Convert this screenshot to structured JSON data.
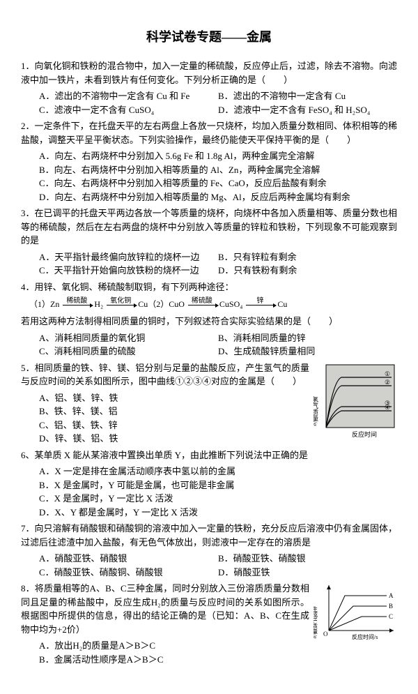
{
  "title": "科学试卷专题——金属",
  "q1": {
    "stem": "1．向氧化铜和铁粉的混合物中，加入一定量的稀硫酸，反应停止后，过滤，除去不溶物。向滤液中加一铁片，未看到铁片有任何变化。下列分析正确的是（　　）",
    "A": "A．滤出的不溶物中一定含有 Cu 和 Fe",
    "B": "B．滤出的不溶物中一定含有 Cu",
    "C": "C．滤液中一定不含有 CuSO₄",
    "D": "D．滤液中一定不含有 FeSO₄ 和 H₂SO₄"
  },
  "q2": {
    "stem": "2．一定条件下，在托盘天平的左右两盘上各放一只烧杯，均加入质量分数相同、体积相等的稀盐酸，调整天平呈平衡状态。下列实验操作，最终仍能使天平保持平衡的是（　　）",
    "A": "A．向左、右两烧杯中分别加入 5.6g Fe 和 1.8g Al，两种金属完全溶解",
    "B": "B．向左、右两烧杯中分别加入相等质量的 Al、Zn，两种金属完全溶解",
    "C": "C．向左、右两烧杯中分别加入相等质量的 Fe、CaO，反应后盐酸有剩余",
    "D": "D．向左、右两烧杯中分别加入相等质量的 Mg、Al，反应后两种金属均有剩余"
  },
  "q3": {
    "stem": "3．在已调平的托盘天平两边各放一个等质量的烧杯，向烧杯中各加入质量相等、质量分数也相等的稀硫酸，然后在左右两盘的烧杯中分别放入等质量的锌粒和铁粉，下列现象不可能观察到的是",
    "A": "A．天平指针最终偏向放锌粒的烧杯一边",
    "B": "B．只有锌粒有剩余",
    "C": "C．天平指针开始偏向放铁粉的烧杯一边",
    "D": "D．只有铁粉有剩余"
  },
  "q4": {
    "stem": "4．用锌、氧化铜、稀硫酸制取铜，有下列两种途径：",
    "flow1": {
      "sub1": "稀硫酸",
      "sub2": "氧化铜",
      "sub3": "稀硫酸",
      "sub4": "锌",
      "s1": "（1）Zn",
      "s2": "H₂",
      "s3": "Cu（2）CuO",
      "s4": "CuSO₄",
      "s5": "Cu"
    },
    "tail": "若用这两种方法制得相同质量的铜时，下列叙述符合实际实验结果的是（　　）",
    "A": "A、消耗相同质量的氧化铜",
    "B": "B、消耗相同质量的锌",
    "C": "C、消耗相同质量的硫酸",
    "D": "D、生成硫酸锌质量相同"
  },
  "q5": {
    "stem": "5．相同质量的铁、锌、镁、铝分别与足量的盐酸反应，产生氢气的质量与反应时间的关系如图所示，图中曲线①②③④对应的金属是（　　）",
    "A": "A、铝、镁、锌、铁",
    "B": "B、铁、锌、镁、铝",
    "C": "C、铝、镁、铁、锌",
    "D": "D、锌、镁、铝、铁",
    "chart": {
      "ylab": "氢气质量/g",
      "xlab": "反应时间",
      "curves": [
        {
          "label": "①",
          "y": 72,
          "color": "#000"
        },
        {
          "label": "②",
          "y": 60,
          "color": "#000"
        },
        {
          "label": "③",
          "y": 30,
          "color": "#000"
        },
        {
          "label": "④",
          "y": 24,
          "color": "#000"
        }
      ],
      "bg": "#d0d0cc"
    }
  },
  "q6": {
    "stem": "6、某单质 X 能从某溶液中置换出单质 Y，由此推断下列说法中正确的是",
    "A": "A．X 一定是排在金属活动顺序表中氢以前的金属",
    "B": "B．X 是金属时，Y 可能是金属，也可能是非金属",
    "C": "C．X 是金属时，Y 一定比 X 活泼",
    "D": "D．X、Y 都是金属时，Y 一定比 X 活泼"
  },
  "q7": {
    "stem": "7．向只溶解有硝酸银和硝酸铜的溶液中加入一定量的铁粉，充分反应后溶液中仍有金属固体，过滤后往滤渣中加入盐酸，有无色气体放出，则滤液中一定存在的溶质是",
    "A": "A．硝酸亚铁、硝酸银",
    "B": "B．硝酸亚铁、硝酸银",
    "C": "C．硝酸亚铁、硝酸铜、硝酸银",
    "D": "D．硝酸亚铁"
  },
  "q8": {
    "stem": "8．将质量相等的A、B、C三种金属，同时分别放入三份溶质质量分数相同且足量的稀盐酸中，反应生成H₂的质量与反应时间的关系如图所示。根据图中所提供的信息，得出的结论正确的是（已知：A、B、C在生成物中均为+2价）",
    "A": "A．放出H₂的质量是A＞B＞C",
    "B": "B．金属活动性顺序是A＞B＞C",
    "chart": {
      "ylab": "生成H₂质量/g",
      "xlab": "反应时间/s",
      "lines": [
        {
          "label": "A",
          "y": 20
        },
        {
          "label": "B",
          "y": 35
        },
        {
          "label": "C",
          "y": 50
        }
      ]
    }
  }
}
